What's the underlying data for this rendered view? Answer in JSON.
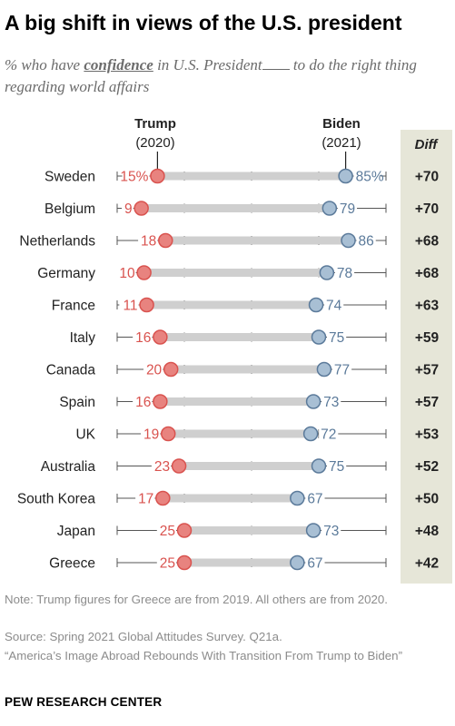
{
  "title": "A big shift in views of the U.S. president",
  "subtitle": {
    "before": "% who have ",
    "keyword": "confidence",
    "middle": " in U.S. President",
    "after": " to do the right thing regarding world affairs"
  },
  "colors": {
    "trump": "#d9534f",
    "trump_fill": "#e8837f",
    "biden": "#5b7a9a",
    "biden_fill": "#a8bfd4",
    "bar": "#cfcfcf",
    "diff_column": "#e6e6d8",
    "label": "#222222"
  },
  "chart_data": {
    "type": "dot-range",
    "series": [
      {
        "name": "Trump (2020)",
        "values": [
          15,
          9,
          18,
          10,
          11,
          16,
          20,
          16,
          19,
          23,
          17,
          25,
          25
        ]
      },
      {
        "name": "Biden (2021)",
        "values": [
          85,
          79,
          86,
          78,
          74,
          75,
          77,
          73,
          72,
          75,
          67,
          73,
          67
        ]
      }
    ],
    "categories": [
      "Sweden",
      "Belgium",
      "Netherlands",
      "Germany",
      "France",
      "Italy",
      "Canada",
      "Spain",
      "UK",
      "Australia",
      "South Korea",
      "Japan",
      "Greece"
    ],
    "diff": [
      "+70",
      "+70",
      "+68",
      "+68",
      "+63",
      "+59",
      "+57",
      "+57",
      "+53",
      "+52",
      "+50",
      "+48",
      "+42"
    ],
    "trump_labels": [
      "15%",
      "9",
      "18",
      "10",
      "11",
      "16",
      "20",
      "16",
      "19",
      "23",
      "17",
      "25",
      "25"
    ],
    "biden_labels": [
      "85%",
      "79",
      "86",
      "78",
      "74",
      "75",
      "77",
      "73",
      "72",
      "75",
      "67",
      "73",
      "67"
    ],
    "headers": {
      "trump_name": "Trump",
      "trump_year": "(2020)",
      "biden_name": "Biden",
      "biden_year": "(2021)",
      "diff": "Diff"
    },
    "xlim": [
      0,
      100
    ]
  },
  "notes": {
    "note": "Note: Trump figures for Greece are from 2019. All others are from 2020.",
    "source": "Source: Spring 2021 Global Attitudes Survey. Q21a.",
    "report": "“America’s Image Abroad Rebounds With Transition From Trump to Biden”"
  },
  "organization": "PEW RESEARCH CENTER"
}
